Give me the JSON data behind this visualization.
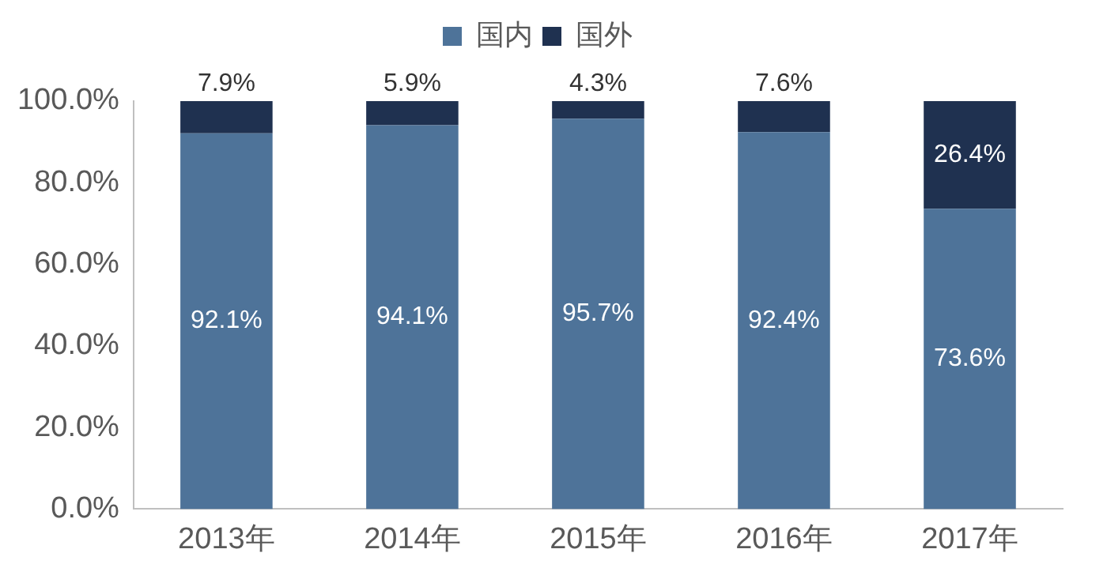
{
  "chart_data": {
    "type": "bar",
    "stacked": true,
    "categories": [
      "2013年",
      "2014年",
      "2015年",
      "2016年",
      "2017年"
    ],
    "series": [
      {
        "name": "国内",
        "color": "#4e7399",
        "values": [
          92.1,
          94.1,
          95.7,
          92.4,
          73.6
        ],
        "value_labels": [
          "92.1%",
          "94.1%",
          "95.7%",
          "92.4%",
          "73.6%"
        ]
      },
      {
        "name": "国外",
        "color": "#1f3150",
        "values": [
          7.9,
          5.9,
          4.3,
          7.6,
          26.4
        ],
        "value_labels": [
          "7.9%",
          "5.9%",
          "4.3%",
          "7.6%",
          "26.4%"
        ]
      }
    ],
    "ylim": [
      0,
      100
    ],
    "yticks": [
      {
        "value": 0,
        "label": "0.0%"
      },
      {
        "value": 20,
        "label": "20.0%"
      },
      {
        "value": 40,
        "label": "40.0%"
      },
      {
        "value": 60,
        "label": "60.0%"
      },
      {
        "value": 80,
        "label": "80.0%"
      },
      {
        "value": 100,
        "label": "100.0%"
      }
    ],
    "grid": false,
    "legend": "top"
  }
}
